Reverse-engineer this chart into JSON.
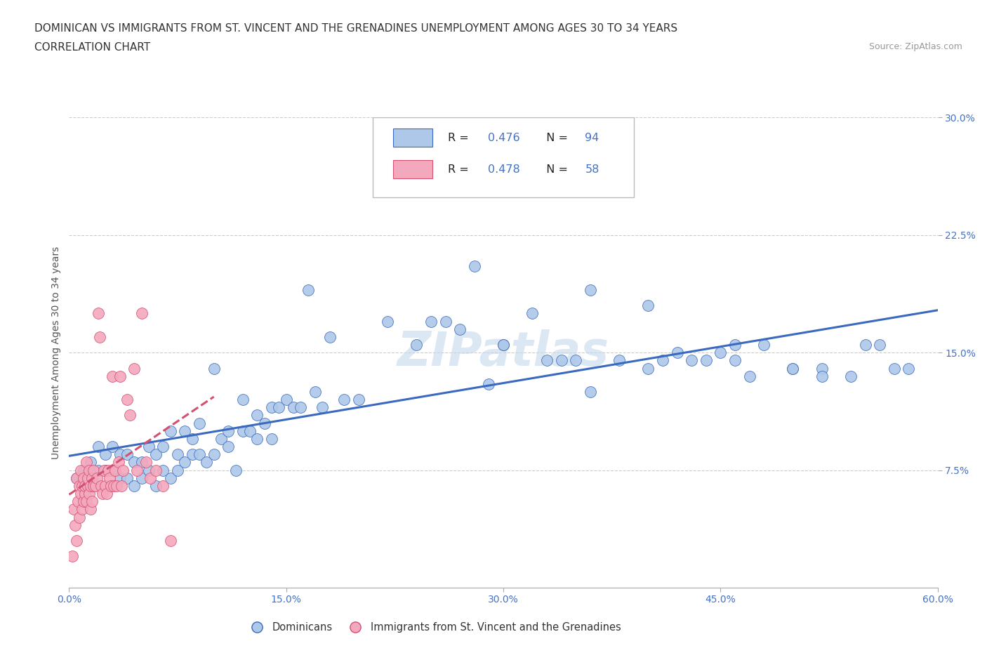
{
  "title_line1": "DOMINICAN VS IMMIGRANTS FROM ST. VINCENT AND THE GRENADINES UNEMPLOYMENT AMONG AGES 30 TO 34 YEARS",
  "title_line2": "CORRELATION CHART",
  "source_text": "Source: ZipAtlas.com",
  "ylabel": "Unemployment Among Ages 30 to 34 years",
  "watermark": "ZIPatlas",
  "blue_R": 0.476,
  "blue_N": 94,
  "pink_R": 0.478,
  "pink_N": 58,
  "blue_color": "#adc8e8",
  "pink_color": "#f4a8be",
  "blue_line_color": "#3a6abf",
  "pink_line_color": "#d45070",
  "background_color": "#ffffff",
  "grid_color": "#cccccc",
  "xlim": [
    0.0,
    0.6
  ],
  "ylim": [
    0.0,
    0.3
  ],
  "xtick_labels": [
    "0.0%",
    "15.0%",
    "30.0%",
    "45.0%",
    "60.0%"
  ],
  "xtick_vals": [
    0.0,
    0.15,
    0.3,
    0.45,
    0.6
  ],
  "ytick_labels": [
    "7.5%",
    "15.0%",
    "22.5%",
    "30.0%"
  ],
  "ytick_vals": [
    0.075,
    0.15,
    0.225,
    0.3
  ],
  "blue_scatter_x": [
    0.005,
    0.01,
    0.015,
    0.02,
    0.02,
    0.025,
    0.025,
    0.03,
    0.03,
    0.035,
    0.035,
    0.04,
    0.04,
    0.045,
    0.045,
    0.05,
    0.05,
    0.055,
    0.055,
    0.06,
    0.06,
    0.065,
    0.065,
    0.07,
    0.07,
    0.075,
    0.075,
    0.08,
    0.08,
    0.085,
    0.085,
    0.09,
    0.09,
    0.095,
    0.1,
    0.1,
    0.105,
    0.11,
    0.11,
    0.115,
    0.12,
    0.12,
    0.125,
    0.13,
    0.13,
    0.135,
    0.14,
    0.14,
    0.145,
    0.15,
    0.155,
    0.16,
    0.165,
    0.17,
    0.175,
    0.18,
    0.19,
    0.2,
    0.22,
    0.24,
    0.26,
    0.28,
    0.3,
    0.32,
    0.34,
    0.36,
    0.38,
    0.4,
    0.42,
    0.44,
    0.46,
    0.48,
    0.5,
    0.52,
    0.54,
    0.56,
    0.58,
    0.45,
    0.5,
    0.52,
    0.55,
    0.57,
    0.25,
    0.27,
    0.3,
    0.33,
    0.36,
    0.4,
    0.43,
    0.46,
    0.29,
    0.35,
    0.41,
    0.47
  ],
  "blue_scatter_y": [
    0.07,
    0.075,
    0.08,
    0.075,
    0.09,
    0.075,
    0.085,
    0.075,
    0.09,
    0.07,
    0.085,
    0.07,
    0.085,
    0.065,
    0.08,
    0.07,
    0.08,
    0.075,
    0.09,
    0.065,
    0.085,
    0.075,
    0.09,
    0.07,
    0.1,
    0.075,
    0.085,
    0.08,
    0.1,
    0.085,
    0.095,
    0.085,
    0.105,
    0.08,
    0.14,
    0.085,
    0.095,
    0.09,
    0.1,
    0.075,
    0.1,
    0.12,
    0.1,
    0.095,
    0.11,
    0.105,
    0.115,
    0.095,
    0.115,
    0.12,
    0.115,
    0.115,
    0.19,
    0.125,
    0.115,
    0.16,
    0.12,
    0.12,
    0.17,
    0.155,
    0.17,
    0.205,
    0.155,
    0.175,
    0.145,
    0.125,
    0.145,
    0.14,
    0.15,
    0.145,
    0.145,
    0.155,
    0.14,
    0.14,
    0.135,
    0.155,
    0.14,
    0.15,
    0.14,
    0.135,
    0.155,
    0.14,
    0.17,
    0.165,
    0.155,
    0.145,
    0.19,
    0.18,
    0.145,
    0.155,
    0.13,
    0.145,
    0.145,
    0.135
  ],
  "pink_scatter_x": [
    0.002,
    0.003,
    0.004,
    0.005,
    0.005,
    0.006,
    0.007,
    0.007,
    0.008,
    0.008,
    0.009,
    0.009,
    0.01,
    0.01,
    0.011,
    0.011,
    0.012,
    0.012,
    0.013,
    0.013,
    0.014,
    0.014,
    0.015,
    0.015,
    0.016,
    0.016,
    0.017,
    0.017,
    0.018,
    0.019,
    0.02,
    0.021,
    0.022,
    0.023,
    0.024,
    0.025,
    0.026,
    0.027,
    0.028,
    0.029,
    0.03,
    0.031,
    0.032,
    0.033,
    0.034,
    0.035,
    0.036,
    0.037,
    0.04,
    0.042,
    0.045,
    0.047,
    0.05,
    0.053,
    0.056,
    0.06,
    0.065,
    0.07
  ],
  "pink_scatter_y": [
    0.02,
    0.05,
    0.04,
    0.07,
    0.03,
    0.055,
    0.065,
    0.045,
    0.06,
    0.075,
    0.05,
    0.065,
    0.055,
    0.07,
    0.06,
    0.065,
    0.055,
    0.08,
    0.065,
    0.07,
    0.06,
    0.075,
    0.05,
    0.065,
    0.055,
    0.07,
    0.065,
    0.075,
    0.065,
    0.07,
    0.175,
    0.16,
    0.065,
    0.06,
    0.075,
    0.065,
    0.06,
    0.075,
    0.07,
    0.065,
    0.135,
    0.065,
    0.075,
    0.065,
    0.08,
    0.135,
    0.065,
    0.075,
    0.12,
    0.11,
    0.14,
    0.075,
    0.175,
    0.08,
    0.07,
    0.075,
    0.065,
    0.03
  ],
  "title_fontsize": 11,
  "subtitle_fontsize": 11,
  "source_fontsize": 9,
  "axis_label_fontsize": 10,
  "tick_fontsize": 10,
  "watermark_fontsize": 48,
  "watermark_color": "#c5d8ee",
  "watermark_alpha": 0.6
}
